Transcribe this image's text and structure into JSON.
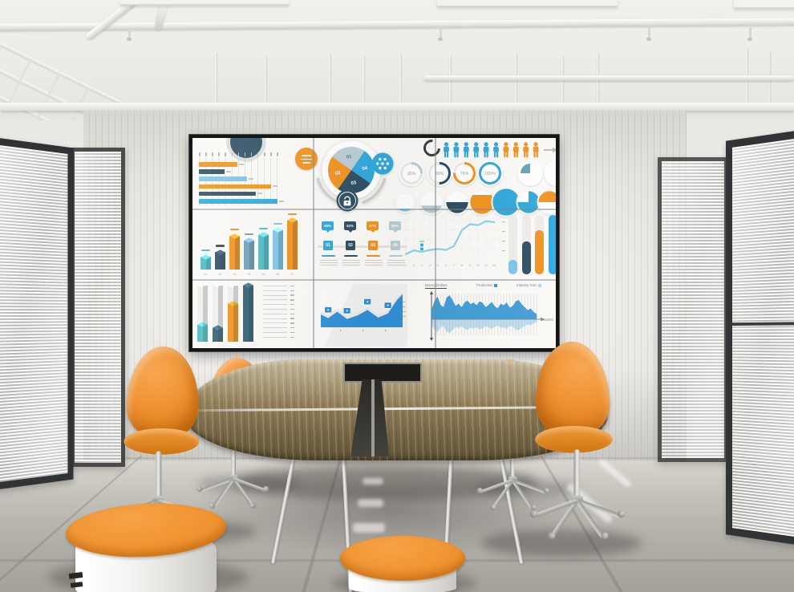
{
  "palette": {
    "orange": "#F2921D",
    "blue": "#2FA8DC",
    "blue2": "#2F8FD8",
    "navy": "#2D4D61",
    "teal": "#4FB9C3",
    "deep_teal": "#2E5F72",
    "steel": "#6F9FB8",
    "light_blue": "#7FC4E8",
    "pale_blue": "#B9CDD6",
    "pale_blue2": "#AFD7EF",
    "track_gray": "#EDEDEB"
  },
  "chart_data": [
    {
      "id": "hbars",
      "type": "bar",
      "orientation": "horizontal",
      "ticks": 13,
      "values": [
        42,
        28,
        52,
        78,
        62,
        85
      ],
      "colors": [
        "orange",
        "navy",
        "light_blue",
        "orange",
        "navy",
        "blue"
      ]
    },
    {
      "id": "pie",
      "type": "pie",
      "slices": [
        {
          "label": "01",
          "value": 25,
          "color": "pale_blue"
        },
        {
          "label": "04",
          "value": 25,
          "color": "blue"
        },
        {
          "label": "03",
          "value": 25,
          "color": "navy"
        },
        {
          "label": "02",
          "value": 25,
          "color": "orange"
        }
      ],
      "icons": [
        "lock-icon",
        "dots-icon"
      ]
    },
    {
      "id": "people",
      "type": "pictogram",
      "count": 10,
      "highlight": 6,
      "highlight_color": "blue",
      "rest_color": "orange",
      "arrow": true
    },
    {
      "id": "gauges",
      "type": "donut",
      "values": [
        25,
        50,
        75,
        100
      ],
      "labels": [
        "25%",
        "50%",
        "75%",
        "100%"
      ],
      "colors": [
        "pale_blue",
        "navy",
        "orange",
        "blue"
      ],
      "extras": [
        {
          "style": "quarter",
          "color": "steel"
        },
        {
          "style": "half_right",
          "color": "navy"
        }
      ]
    },
    {
      "id": "fill_circles",
      "type": "fill",
      "items": [
        {
          "style": "bottom",
          "pct": 15,
          "color": "light_blue"
        },
        {
          "style": "bottom",
          "pct": 35,
          "color": "pale_blue"
        },
        {
          "style": "bottom",
          "pct": 50,
          "color": "navy"
        },
        {
          "style": "bottom",
          "pct": 80,
          "color": "orange"
        },
        {
          "style": "full",
          "pct": 100,
          "color": "blue"
        },
        {
          "style": "pie",
          "pct": 75,
          "color": "blue"
        },
        {
          "style": "top_half",
          "pct": 50,
          "color": "orange"
        }
      ]
    },
    {
      "id": "isobars",
      "type": "bar3d",
      "categories": [
        "01",
        "02",
        "03",
        "04",
        "05",
        "06",
        "07"
      ],
      "values": [
        22,
        30,
        58,
        50,
        60,
        68,
        85
      ],
      "colors": [
        "teal",
        "navy",
        "orange",
        "steel",
        "teal",
        "light_blue",
        "orange"
      ]
    },
    {
      "id": "options",
      "type": "steps",
      "items": [
        {
          "num": "01",
          "pct": "65%",
          "color": "blue"
        },
        {
          "num": "02",
          "pct": "52%",
          "color": "navy"
        },
        {
          "num": "03",
          "pct": "47%",
          "color": "orange"
        },
        {
          "num": "04",
          "pct": "85%",
          "color": "pale_blue"
        }
      ]
    },
    {
      "id": "line",
      "type": "line",
      "x": [
        1,
        2,
        3,
        4,
        5,
        6,
        7,
        8,
        9,
        10,
        11,
        12
      ],
      "values": [
        60,
        95,
        80,
        100,
        110,
        100,
        140,
        300,
        360,
        350,
        390,
        380
      ],
      "ylim": [
        0,
        420
      ],
      "callout_x": 3,
      "grid": true
    },
    {
      "id": "progress",
      "type": "bar",
      "orientation": "vertical",
      "values": [
        25,
        55,
        75,
        100
      ],
      "colors": [
        "light_blue",
        "navy",
        "orange",
        "blue"
      ]
    },
    {
      "id": "columns",
      "type": "fill_columns",
      "values": [
        30,
        25,
        68,
        100
      ],
      "colors": [
        "teal",
        "deep_teal",
        "orange",
        "deep_teal"
      ],
      "scale_lines": 12
    },
    {
      "id": "flag_area",
      "type": "area",
      "color": "blue2",
      "profile": [
        [
          0,
          50
        ],
        [
          9,
          58
        ],
        [
          20,
          44
        ],
        [
          32,
          60
        ],
        [
          45,
          52
        ],
        [
          57,
          40
        ],
        [
          70,
          57
        ],
        [
          82,
          48
        ],
        [
          93,
          18
        ],
        [
          100,
          5
        ]
      ],
      "flags": [
        "01",
        "02",
        "03",
        "04"
      ]
    },
    {
      "id": "months_area",
      "type": "area",
      "mirrored": true,
      "legend": [
        "Money/Dollars",
        "Production",
        "Industry Gain"
      ],
      "legend_colors": [
        "navy",
        "blue2",
        "pale_blue2"
      ],
      "xlabel": "Months",
      "values": [
        40,
        75,
        95,
        60,
        50,
        90,
        100,
        80,
        55,
        65,
        50,
        70,
        78,
        62,
        70,
        58,
        75,
        68,
        50,
        60,
        72,
        55,
        45,
        65,
        58,
        70,
        48,
        55,
        75,
        80,
        62,
        50,
        38,
        45,
        30,
        22
      ]
    }
  ]
}
